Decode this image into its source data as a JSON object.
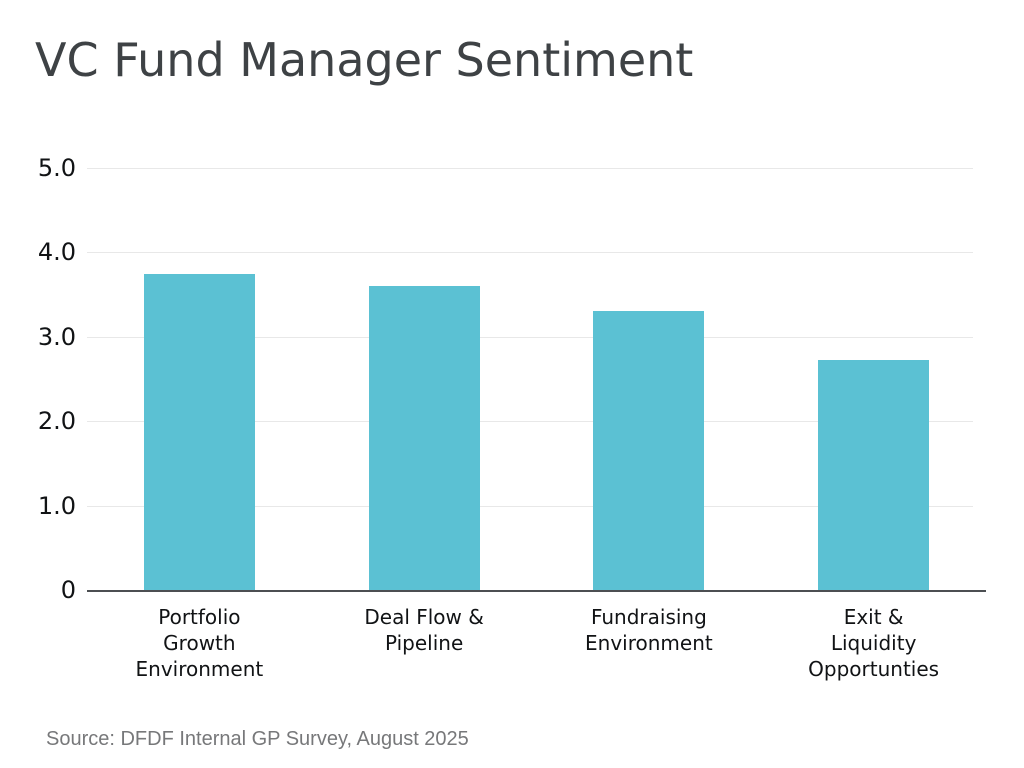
{
  "colors": {
    "bar": "#5BC1D3",
    "gridline": "#E8E8E8",
    "axis_line": "#4C4F52",
    "title_text": "#3E4245",
    "tick_text": "#111315",
    "source_text": "#77787A",
    "background": "#FFFFFF"
  },
  "chart_data": {
    "type": "bar",
    "title": "VC Fund Manager Sentiment",
    "categories": [
      [
        "Portfolio",
        "Growth",
        "Environment"
      ],
      [
        "Deal Flow &",
        "Pipeline"
      ],
      [
        "Fundraising",
        "Environment"
      ],
      [
        "Exit &",
        "Liquidity",
        "Opportunties"
      ]
    ],
    "values": [
      3.75,
      3.6,
      3.3,
      2.73
    ],
    "xlabel": "",
    "ylabel": "",
    "ylim": [
      0,
      5
    ],
    "yticks": [
      {
        "label": "5.0",
        "value": 5
      },
      {
        "label": "4.0",
        "value": 4
      },
      {
        "label": "3.0",
        "value": 3
      },
      {
        "label": "2.0",
        "value": 2
      },
      {
        "label": "1.0",
        "value": 1
      },
      {
        "label": "0",
        "value": 0
      }
    ],
    "grid": true,
    "legend": false,
    "source_note": "Source: DFDF Internal GP Survey, August 2025"
  }
}
